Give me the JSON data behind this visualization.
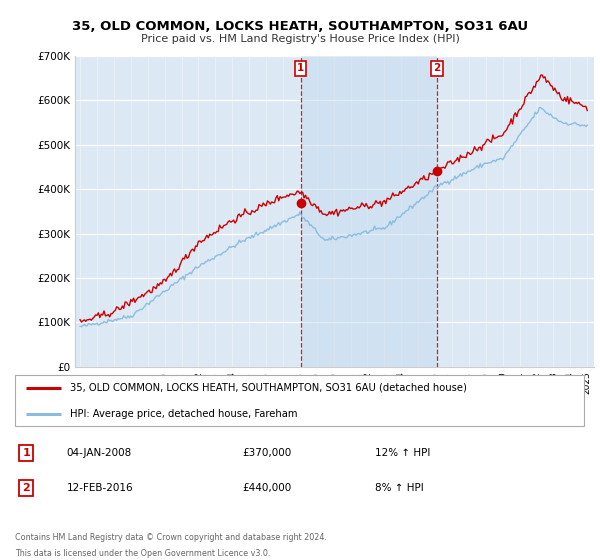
{
  "title1": "35, OLD COMMON, LOCKS HEATH, SOUTHAMPTON, SO31 6AU",
  "title2": "Price paid vs. HM Land Registry's House Price Index (HPI)",
  "legend_line1": "35, OLD COMMON, LOCKS HEATH, SOUTHAMPTON, SO31 6AU (detached house)",
  "legend_line2": "HPI: Average price, detached house, Fareham",
  "annotation1_label": "1",
  "annotation1_date": "04-JAN-2008",
  "annotation1_price": "£370,000",
  "annotation1_hpi": "12% ↑ HPI",
  "annotation2_label": "2",
  "annotation2_date": "12-FEB-2016",
  "annotation2_price": "£440,000",
  "annotation2_hpi": "8% ↑ HPI",
  "footer1": "Contains HM Land Registry data © Crown copyright and database right 2024.",
  "footer2": "This data is licensed under the Open Government Licence v3.0.",
  "price_color": "#cc0000",
  "hpi_color": "#88bbdd",
  "background_color": "#dce9f5",
  "ylim": [
    0,
    700000
  ],
  "yticks": [
    0,
    100000,
    200000,
    300000,
    400000,
    500000,
    600000,
    700000
  ],
  "ytick_labels": [
    "£0",
    "£100K",
    "£200K",
    "£300K",
    "£400K",
    "£500K",
    "£600K",
    "£700K"
  ],
  "sale1_x": 2008.04,
  "sale1_y": 370000,
  "sale2_x": 2016.12,
  "sale2_y": 440000,
  "xmin": 1995,
  "xmax": 2025
}
